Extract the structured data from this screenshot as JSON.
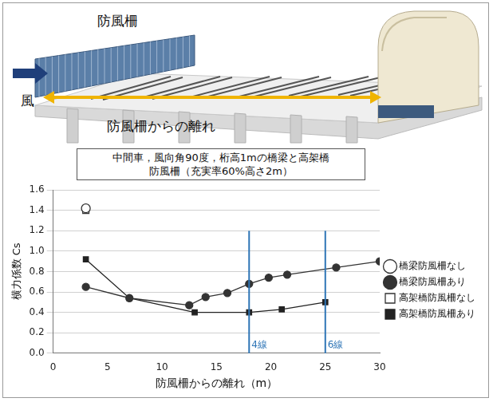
{
  "illustration": {
    "fence_label": "防風柵",
    "wind_label": "風",
    "distance_label": "防風柵からの離れ"
  },
  "chart_data": {
    "type": "line",
    "title": "中間車，風向角90度，桁高1mの橋梁と高架橋",
    "subtitle": "防風柵（充実率60%高さ2m）",
    "x_label": "防風柵からの離れ（m）",
    "y_label": "横力係数 Cs",
    "xlim": [
      0,
      30
    ],
    "xticks": [
      0,
      5,
      10,
      15,
      20,
      25,
      30
    ],
    "ylim": [
      0,
      1.6
    ],
    "yticks": [
      {
        "value": 0,
        "label": "0.0"
      },
      0.2,
      0.4,
      0.6,
      0.8,
      {
        "value": 1,
        "label": "1.0"
      },
      1.2,
      1.4,
      1.6
    ],
    "grid": "y",
    "legend": "right",
    "series": [
      {
        "name": "橋梁防風柵なし",
        "color": "#333333",
        "marker": "circle_open",
        "line_style": "none",
        "x": [
          3
        ],
        "values": [
          1.42
        ]
      },
      {
        "name": "橋梁防風柵あり",
        "color": "#333333",
        "marker": "circle",
        "line_style": "solid",
        "x": [
          3,
          7,
          12.5,
          14,
          16,
          18,
          19.8,
          21.5,
          26,
          30
        ],
        "values": [
          0.65,
          0.54,
          0.47,
          0.55,
          0.59,
          0.68,
          0.74,
          0.77,
          0.84,
          0.9
        ]
      },
      {
        "name": "高架橋防風柵なし",
        "color": "#333333",
        "marker": "square_open",
        "line_style": "none",
        "x": [
          3
        ],
        "values": [
          1.4
        ]
      },
      {
        "name": "高架橋防風柵あり",
        "color": "#222222",
        "marker": "square",
        "line_style": "solid",
        "x": [
          3,
          7,
          13,
          18,
          21,
          25
        ],
        "values": [
          0.92,
          0.54,
          0.4,
          0.4,
          0.43,
          0.5
        ]
      }
    ],
    "annotations": [
      {
        "x": 18,
        "y": [
          0,
          1.2
        ],
        "text": "4線",
        "color": "#2e75b6"
      },
      {
        "x": 25,
        "y": [
          0,
          1.2
        ],
        "text": "6線",
        "color": "#2e75b6"
      }
    ]
  }
}
